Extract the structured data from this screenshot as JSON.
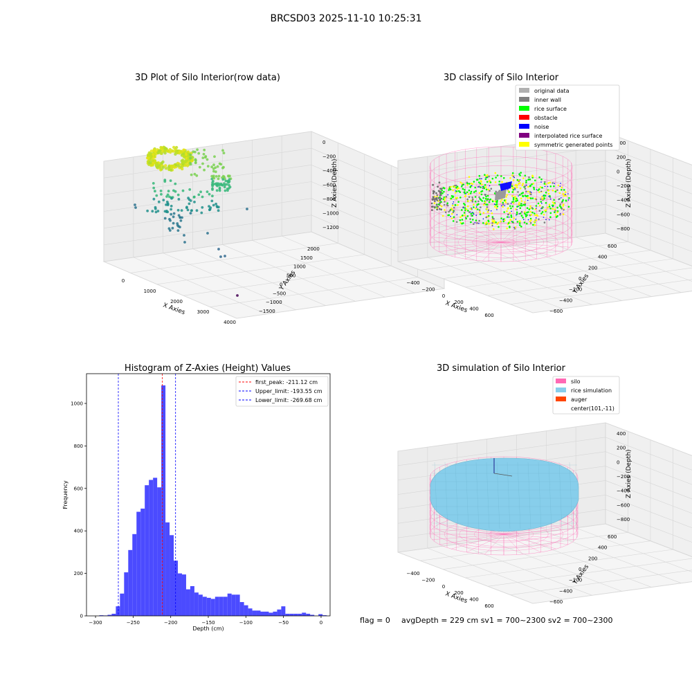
{
  "suptitle": "BRCSD03 2025-11-10 10:25:31",
  "colors": {
    "pane": "#f2f2f2",
    "grid": "#d0d0d0",
    "hist_bar": "#4b4bff",
    "peak_line": "#ff0000",
    "limit_line": "#0000ff",
    "silo": "#ff69b4",
    "rice_sim": "#87ceeb",
    "auger": "#ff4500"
  },
  "chart_data": [
    {
      "type": "scatter",
      "title": "3D Plot of Silo Interior(row data)",
      "xlabel": "X Axies",
      "ylabel": "Y Axies",
      "zlabel": "Z Axies (Depth)",
      "xticks": [
        "0",
        "1000",
        "2000",
        "3000",
        "4000"
      ],
      "yticks": [
        "−1500",
        "−1000",
        "−500",
        "0",
        "500",
        "1000",
        "1500",
        "2000"
      ],
      "zticks": [
        "0",
        "−200",
        "−400",
        "−600",
        "−800",
        "−1000",
        "−1200"
      ]
    },
    {
      "type": "scatter",
      "title": "3D classify of Silo Interior",
      "xlabel": "X Axies",
      "ylabel": "Y Axies",
      "zlabel": "Z Axies (Depth)",
      "xticks": [
        "−400",
        "−200",
        "0",
        "200",
        "400",
        "600"
      ],
      "yticks": [
        "−600",
        "−400",
        "−200",
        "0",
        "200",
        "400",
        "600"
      ],
      "zticks": [
        "400",
        "200",
        "0",
        "−200",
        "−400",
        "−600",
        "−800"
      ],
      "legend": [
        {
          "label": "original data",
          "color": "#b0b0b0"
        },
        {
          "label": "inner wall",
          "color": "#808080"
        },
        {
          "label": "rice surface",
          "color": "#00ff00"
        },
        {
          "label": "obstacle",
          "color": "#ff0000"
        },
        {
          "label": "noise",
          "color": "#0000ff"
        },
        {
          "label": "interpolated rice surface",
          "color": "#800080"
        },
        {
          "label": "symmetric generated points",
          "color": "#ffff00"
        }
      ]
    },
    {
      "type": "bar",
      "title": "Histogram of Z-Axies (Height) Values",
      "xlabel": "Depth (cm)",
      "ylabel": "Frequency",
      "xlim": [
        -312,
        12
      ],
      "ylim": [
        0,
        1140
      ],
      "xticks": [
        -300,
        -250,
        -200,
        -150,
        -100,
        -50,
        0
      ],
      "yticks": [
        0,
        200,
        400,
        600,
        800,
        1000
      ],
      "bin_edges_start": -295,
      "bin_width": 5.5,
      "values": [
        3,
        2,
        5,
        10,
        45,
        105,
        205,
        310,
        385,
        490,
        505,
        615,
        640,
        650,
        605,
        1085,
        440,
        380,
        260,
        200,
        195,
        125,
        140,
        110,
        100,
        90,
        85,
        80,
        90,
        90,
        90,
        105,
        100,
        100,
        65,
        50,
        35,
        25,
        25,
        20,
        20,
        15,
        20,
        30,
        45,
        10,
        10,
        10,
        10,
        15,
        10,
        5,
        0,
        8,
        3
      ],
      "lines": [
        {
          "label": "first_peak: -211.12 cm",
          "x": -211.12,
          "color": "#ff0000"
        },
        {
          "label": "Upper_limit: -193.55 cm",
          "x": -193.55,
          "color": "#0000ff"
        },
        {
          "label": "Lower_limit: -269.68 cm",
          "x": -269.68,
          "color": "#0000ff"
        }
      ]
    },
    {
      "type": "scatter",
      "title": "3D simulation of Silo Interior",
      "xlabel": "X Axies",
      "ylabel": "Y Axies",
      "zlabel": "Z Axies (Depth)",
      "xticks": [
        "−400",
        "−200",
        "0",
        "200",
        "400",
        "600"
      ],
      "yticks": [
        "−600",
        "−400",
        "−200",
        "0",
        "200",
        "400",
        "600"
      ],
      "zticks": [
        "400",
        "200",
        "0",
        "−200",
        "−400",
        "−600",
        "−800"
      ],
      "legend": [
        {
          "label": "silo",
          "color": "#ff69b4"
        },
        {
          "label": "rice simulation",
          "color": "#87ceeb"
        },
        {
          "label": "auger",
          "color": "#ff4500"
        },
        {
          "label": "center(101,-11)",
          "color": ""
        }
      ]
    }
  ],
  "footer": {
    "flag": "flag = 0",
    "avg": "avgDepth = 229 cm  sv1 = 700~2300  sv2 = 700~2300"
  }
}
